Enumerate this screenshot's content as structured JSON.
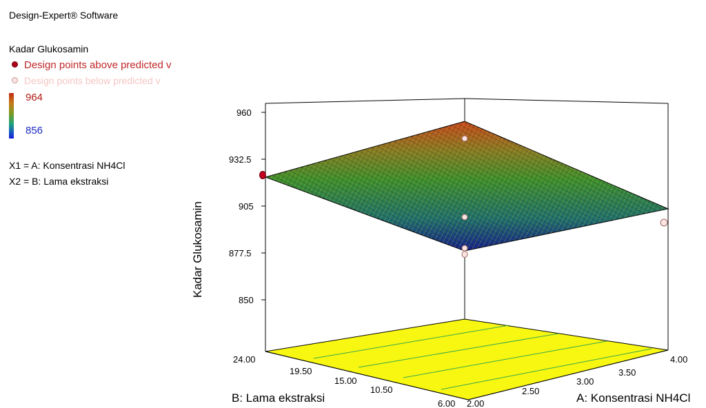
{
  "software_title": "Design-Expert® Software",
  "response": "Kadar Glukosamin",
  "legend": {
    "above_label": "Design points above predicted v",
    "below_label": "Design points below predicted v",
    "color_max": "964",
    "color_min": "856",
    "above_color": "#b00018",
    "below_color": "#fbe4e2"
  },
  "factors": {
    "x1": "X1 = A: Konsentrasi NH4Cl",
    "x2": "X2 = B: Lama ekstraksi"
  },
  "chart_data": {
    "type": "surface3d",
    "zlabel": "Kadar Glukosamin",
    "xlabel": "A: Konsentrasi NH4Cl",
    "ylabel": "B: Lama ekstraksi",
    "xlim": [
      2.0,
      4.0
    ],
    "ylim": [
      6.0,
      24.0
    ],
    "zlim": [
      850,
      960
    ],
    "x_ticks": [
      "2.00",
      "2.50",
      "3.00",
      "3.50",
      "4.00"
    ],
    "y_ticks": [
      "6.00",
      "10.50",
      "15.00",
      "19.50",
      "24.00"
    ],
    "z_ticks": [
      "850",
      "877.5",
      "905",
      "932.5",
      "960"
    ],
    "surface_corners": [
      {
        "a": 2.0,
        "b": 6.0,
        "z": 877
      },
      {
        "a": 4.0,
        "b": 6.0,
        "z": 914
      },
      {
        "a": 4.0,
        "b": 24.0,
        "z": 957
      },
      {
        "a": 2.0,
        "b": 24.0,
        "z": 921
      }
    ],
    "design_points": [
      {
        "a": 2.0,
        "b": 24.0,
        "z": 926,
        "position": "above"
      },
      {
        "a": 3.0,
        "b": 15.0,
        "z": 950,
        "position": "below"
      },
      {
        "a": 3.0,
        "b": 15.0,
        "z": 913,
        "position": "below"
      },
      {
        "a": 3.0,
        "b": 15.0,
        "z": 879,
        "position": "below"
      },
      {
        "a": 3.0,
        "b": 15.0,
        "z": 876,
        "position": "below"
      },
      {
        "a": 4.0,
        "b": 6.0,
        "z": 907,
        "position": "below"
      }
    ],
    "contour_color": "#f7f712",
    "contour_line_color": "#3aa84a",
    "surface_colors": {
      "high": "#c8461c",
      "mid": "#3b8a3b",
      "low": "#1a2a8c"
    }
  }
}
